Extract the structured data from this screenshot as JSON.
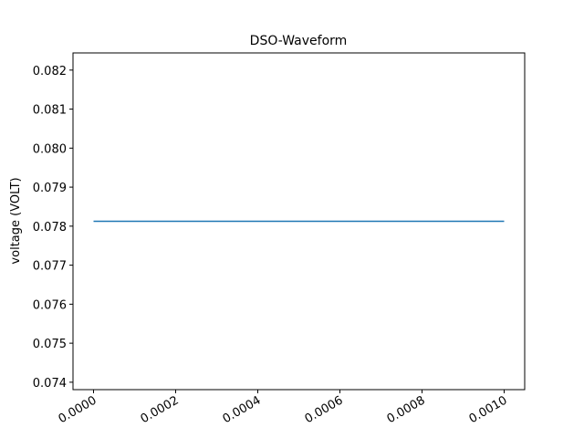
{
  "chart_data": {
    "type": "line",
    "title": "DSO-Waveform",
    "y_label": "voltage (VOLT)",
    "x": [
      0,
      0.001
    ],
    "series": [
      {
        "color": "#1f77b4",
        "values": [
          0.078125,
          0.078125
        ]
      }
    ],
    "xlim": [
      -5e-05,
      0.00105
    ],
    "xticks": [
      {
        "value": 0,
        "label": "0.0000"
      },
      {
        "value": 0.0002,
        "label": "0.0002"
      },
      {
        "value": 0.0004,
        "label": "0.0004"
      },
      {
        "value": 0.0006,
        "label": "0.0006"
      },
      {
        "value": 0.0008,
        "label": "0.0008"
      },
      {
        "value": 0.001,
        "label": "0.0010"
      }
    ],
    "ylim": [
      0.07381,
      0.08244
    ],
    "yticks": [
      0.074,
      0.075,
      0.076,
      0.077,
      0.078,
      0.079,
      {
        "value": 0.08,
        "label": "0.080"
      },
      0.081,
      0.082
    ]
  }
}
